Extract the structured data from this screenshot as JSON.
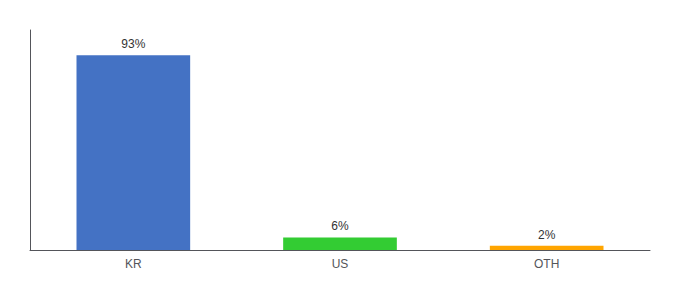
{
  "chart_data": {
    "type": "bar",
    "categories": [
      "KR",
      "US",
      "OTH"
    ],
    "values": [
      93,
      6,
      2
    ],
    "value_labels": [
      "93%",
      "6%",
      "2%"
    ],
    "colors": [
      "#4472C4",
      "#33CC33",
      "#FFA500"
    ],
    "ylim": [
      0,
      105
    ],
    "data_labels": true,
    "tick_labels": "x",
    "grid": false
  }
}
